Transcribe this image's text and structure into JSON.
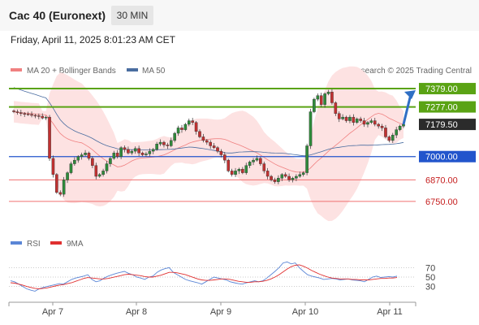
{
  "header": {
    "title": "Cac 40 (Euronext)",
    "timeframe": "30 MIN"
  },
  "datetime": "Friday, April 11, 2025 8:01:23 AM CET",
  "legend": {
    "ma20_label": "MA 20 + Bollinger Bands",
    "ma50_label": "MA 50",
    "credit": "Research © 2025 Trading Central",
    "rsi_label": "RSI",
    "ma9_label": "9MA"
  },
  "colors": {
    "resistance": "#5aa314",
    "support_key": "#2255cc",
    "support_minor": "#f07070",
    "bollinger_fill": "#fde2e2",
    "ma20": "#f08080",
    "ma50": "#4a6da0",
    "candle_up": "#2e8b3a",
    "candle_down": "#c23030",
    "rsi": "#5b86d6",
    "rsi_ma": "#e03030",
    "arrow": "#2f6fc4"
  },
  "chart_data": [
    {
      "type": "candlestick",
      "title": "Cac 40 (Euronext)",
      "timeframe": "30 MIN",
      "x_tick_labels": [
        "Apr 7",
        "Apr 8",
        "Apr 9",
        "Apr 10",
        "Apr 11"
      ],
      "y_range": [
        6650,
        7420
      ],
      "last_price": 7179.5,
      "levels": [
        {
          "value": 7379.0,
          "label": "7379.00",
          "kind": "resistance"
        },
        {
          "value": 7277.0,
          "label": "7277.00",
          "kind": "resistance"
        },
        {
          "value": 7000.0,
          "label": "7000.00",
          "kind": "support_key"
        },
        {
          "value": 6870.0,
          "label": "6870.00",
          "kind": "support_minor"
        },
        {
          "value": 6750.0,
          "label": "6750.00",
          "kind": "support_minor"
        }
      ],
      "last_price_label": "7179.50",
      "indicators": [
        "MA 20 + Bollinger Bands",
        "MA 50"
      ],
      "forecast": "up toward 7379.00",
      "close_series": [
        7250,
        7245,
        7240,
        7238,
        7235,
        7230,
        7228,
        7225,
        7215,
        7220,
        6990,
        6900,
        6800,
        6790,
        6870,
        6910,
        6960,
        6980,
        7000,
        7010,
        7020,
        6990,
        6950,
        6890,
        6900,
        6920,
        6960,
        6990,
        7020,
        7000,
        7050,
        7040,
        7020,
        7030,
        7045,
        7020,
        7010,
        7015,
        7030,
        7040,
        7070,
        7080,
        7065,
        7060,
        7090,
        7130,
        7160,
        7150,
        7180,
        7200,
        7190,
        7140,
        7110,
        7090,
        7080,
        7060,
        7050,
        7030,
        7010,
        6980,
        6920,
        6900,
        6920,
        6930,
        6910,
        6950,
        6970,
        6980,
        6990,
        6960,
        6920,
        6890,
        6870,
        6860,
        6880,
        6900,
        6890,
        6870,
        6880,
        6890,
        6900,
        6910,
        7060,
        7250,
        7320,
        7340,
        7290,
        7350,
        7360,
        7300,
        7240,
        7210,
        7220,
        7200,
        7220,
        7190,
        7210,
        7200,
        7180,
        7190,
        7200,
        7180,
        7170,
        7160,
        7110,
        7090,
        7120,
        7150,
        7170,
        7179.5
      ]
    },
    {
      "type": "line",
      "series": [
        "RSI",
        "9MA"
      ],
      "y_range": [
        0,
        100
      ],
      "y_tick_labels": [
        "70",
        "50",
        "30"
      ],
      "y_ticks": [
        70,
        50,
        30
      ],
      "rsi": [
        42,
        40,
        35,
        30,
        25,
        22,
        20,
        25,
        28,
        30,
        32,
        34,
        36,
        35,
        40,
        45,
        48,
        50,
        52,
        55,
        45,
        40,
        42,
        48,
        52,
        55,
        58,
        60,
        62,
        58,
        55,
        50,
        48,
        45,
        50,
        52,
        60,
        65,
        68,
        70,
        60,
        55,
        50,
        45,
        42,
        40,
        38,
        35,
        40,
        45,
        50,
        48,
        46,
        44,
        40,
        38,
        36,
        35,
        38,
        40,
        42,
        40,
        42,
        48,
        55,
        62,
        70,
        80,
        82,
        78,
        80,
        70,
        62,
        55,
        52,
        50,
        48,
        45,
        46,
        47,
        46,
        44,
        45,
        46,
        44,
        43,
        42,
        40,
        45,
        50,
        52,
        49,
        50,
        51,
        50,
        52
      ],
      "rsi_ma": [
        38,
        37,
        35,
        33,
        30,
        28,
        26,
        25,
        26,
        27,
        29,
        31,
        33,
        34,
        36,
        38,
        41,
        44,
        47,
        49,
        48,
        47,
        46,
        46,
        47,
        49,
        51,
        53,
        55,
        56,
        55,
        54,
        53,
        51,
        50,
        50,
        52,
        54,
        57,
        60,
        60,
        59,
        57,
        55,
        52,
        49,
        46,
        44,
        43,
        43,
        44,
        45,
        46,
        46,
        45,
        43,
        41,
        40,
        39,
        39,
        40,
        40,
        41,
        43,
        46,
        50,
        55,
        61,
        67,
        72,
        75,
        76,
        73,
        69,
        64,
        60,
        56,
        53,
        50,
        48,
        47,
        46,
        46,
        46,
        45,
        45,
        44,
        44,
        44,
        45,
        46,
        47,
        47,
        48,
        48,
        49
      ]
    }
  ]
}
